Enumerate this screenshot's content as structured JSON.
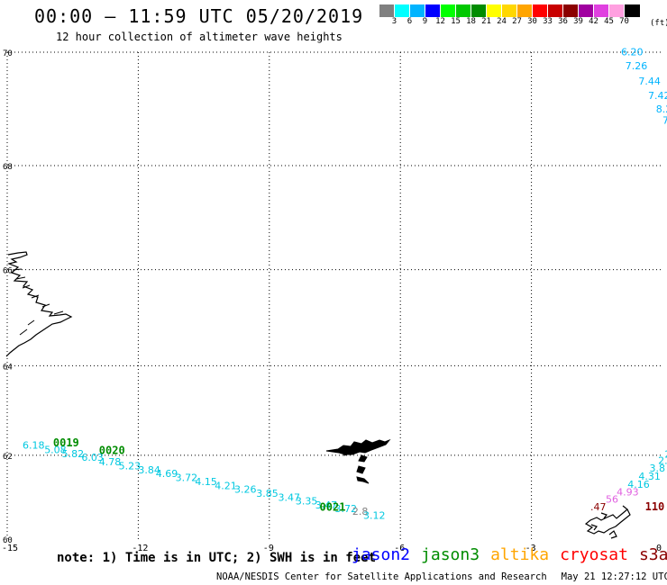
{
  "header": {
    "title": "00:00 – 11:59 UTC 05/20/2019",
    "subtitle": "12 hour collection of altimeter wave heights"
  },
  "legend": {
    "colors": [
      "#808080",
      "#00ffff",
      "#00b4ff",
      "#0000ff",
      "#00ff00",
      "#00c800",
      "#008c00",
      "#ffff00",
      "#ffd700",
      "#ffa500",
      "#ff0000",
      "#c80000",
      "#8b0000",
      "#a000a0",
      "#e040e0",
      "#ffa0e0",
      "#000000"
    ],
    "ticks": [
      "3",
      "6",
      "9",
      "12",
      "15",
      "18",
      "21",
      "24",
      "27",
      "30",
      "33",
      "36",
      "39",
      "42",
      "45",
      "70"
    ],
    "unit": "(ft)"
  },
  "map": {
    "lat_labels": [
      {
        "lat": 70,
        "text": "70"
      },
      {
        "lat": 68,
        "text": "68"
      },
      {
        "lat": 66,
        "text": "66"
      },
      {
        "lat": 64,
        "text": "64"
      },
      {
        "lat": 62,
        "text": "62"
      },
      {
        "lat": 60,
        "text": "60"
      }
    ],
    "lon_labels": [
      {
        "lon": -15,
        "text": "-15"
      },
      {
        "lon": -12,
        "text": "-12"
      },
      {
        "lon": -9,
        "text": "-9"
      },
      {
        "lon": -6,
        "text": "-6"
      },
      {
        "lon": -3,
        "text": "-3"
      },
      {
        "lon": 0,
        "text": "0"
      }
    ],
    "observations": [
      {
        "lon": -0.95,
        "lat": 69.95,
        "text": "6.20",
        "color": "#00b4ff"
      },
      {
        "lon": -0.85,
        "lat": 69.71,
        "text": "7.26",
        "color": "#00b4ff"
      },
      {
        "lon": -0.55,
        "lat": 69.45,
        "text": "7.44",
        "color": "#00b4ff"
      },
      {
        "lon": -0.33,
        "lat": 69.2,
        "text": "7.42",
        "color": "#00b4ff"
      },
      {
        "lon": -0.15,
        "lat": 68.96,
        "text": "8.2",
        "color": "#00b4ff"
      },
      {
        "lon": 0.0,
        "lat": 68.76,
        "text": "7",
        "color": "#00b4ff"
      },
      {
        "lon": -14.65,
        "lat": 62.15,
        "text": "6.18",
        "color": "#00c8e0"
      },
      {
        "lon": -14.15,
        "lat": 62.05,
        "text": "5.08",
        "color": "#00c8e0"
      },
      {
        "lon": -13.75,
        "lat": 61.96,
        "text": "5.82",
        "color": "#00c8e0"
      },
      {
        "lon": -13.3,
        "lat": 61.87,
        "text": "6.03",
        "color": "#00c8e0"
      },
      {
        "lon": -12.9,
        "lat": 61.77,
        "text": "4.78",
        "color": "#00c8e0"
      },
      {
        "lon": -12.45,
        "lat": 61.67,
        "text": "5.23",
        "color": "#00c8e0"
      },
      {
        "lon": -12.0,
        "lat": 61.58,
        "text": "3.84",
        "color": "#00c8e0"
      },
      {
        "lon": -11.6,
        "lat": 61.49,
        "text": "4.69",
        "color": "#00c8e0"
      },
      {
        "lon": -11.15,
        "lat": 61.4,
        "text": "3.72",
        "color": "#00c8e0"
      },
      {
        "lon": -10.7,
        "lat": 61.3,
        "text": "4.15",
        "color": "#00c8e0"
      },
      {
        "lon": -10.25,
        "lat": 61.21,
        "text": "4.21",
        "color": "#00c8e0"
      },
      {
        "lon": -9.8,
        "lat": 61.12,
        "text": "3.26",
        "color": "#00c8e0"
      },
      {
        "lon": -9.3,
        "lat": 61.02,
        "text": "3.85",
        "color": "#00c8e0"
      },
      {
        "lon": -8.8,
        "lat": 60.93,
        "text": "3.47",
        "color": "#00c8e0"
      },
      {
        "lon": -8.4,
        "lat": 60.84,
        "text": "3.35",
        "color": "#00c8e0"
      },
      {
        "lon": -7.95,
        "lat": 60.75,
        "text": "3.47",
        "color": "#00c8e0"
      },
      {
        "lon": -7.5,
        "lat": 60.66,
        "text": "3.72",
        "color": "#00c8e0"
      },
      {
        "lon": -7.1,
        "lat": 60.59,
        "text": "2.8",
        "color": "#808080"
      },
      {
        "lon": -6.85,
        "lat": 60.5,
        "text": "3.12",
        "color": "#00c8e0"
      },
      {
        "lon": 0.05,
        "lat": 61.95,
        "text": "2",
        "color": "#00c8e0"
      },
      {
        "lon": -0.1,
        "lat": 61.8,
        "text": "2.",
        "color": "#00c8e0"
      },
      {
        "lon": -0.3,
        "lat": 61.62,
        "text": "3.8",
        "color": "#00c8e0"
      },
      {
        "lon": -0.55,
        "lat": 61.43,
        "text": "4.31",
        "color": "#00c8e0"
      },
      {
        "lon": -0.8,
        "lat": 61.24,
        "text": "4.16",
        "color": "#00c8e0"
      },
      {
        "lon": -1.05,
        "lat": 61.06,
        "text": "4.93",
        "color": "#e060e0"
      },
      {
        "lon": -1.3,
        "lat": 60.88,
        "text": "56",
        "color": "#e060e0"
      },
      {
        "lon": -1.65,
        "lat": 60.7,
        "text": ".47",
        "color": "#8b0000"
      }
    ],
    "track_labels": [
      {
        "lon": -13.95,
        "lat": 62.2,
        "text": "0019",
        "color": "#008c00"
      },
      {
        "lon": -12.9,
        "lat": 62.03,
        "text": "0020",
        "color": "#008c00"
      },
      {
        "lon": -7.85,
        "lat": 60.69,
        "text": "0021",
        "color": "#008c00"
      },
      {
        "lon": -0.4,
        "lat": 60.7,
        "text": "110",
        "color": "#8b0000"
      }
    ],
    "land_color": "#000000"
  },
  "note": "note: 1) Time is in UTC; 2) SWH is in feet",
  "satellites": [
    {
      "name": "jason2",
      "color": "#0000ff"
    },
    {
      "name": "jason3",
      "color": "#008c00"
    },
    {
      "name": "altika",
      "color": "#ffa500"
    },
    {
      "name": "cryosat",
      "color": "#ff0000"
    },
    {
      "name": "s3a",
      "color": "#8b0000"
    }
  ],
  "footer": {
    "credit": "NOAA/NESDIS Center for Satellite Applications and Research",
    "timestamp": "May 21 12:27:12 UTC 2019"
  }
}
